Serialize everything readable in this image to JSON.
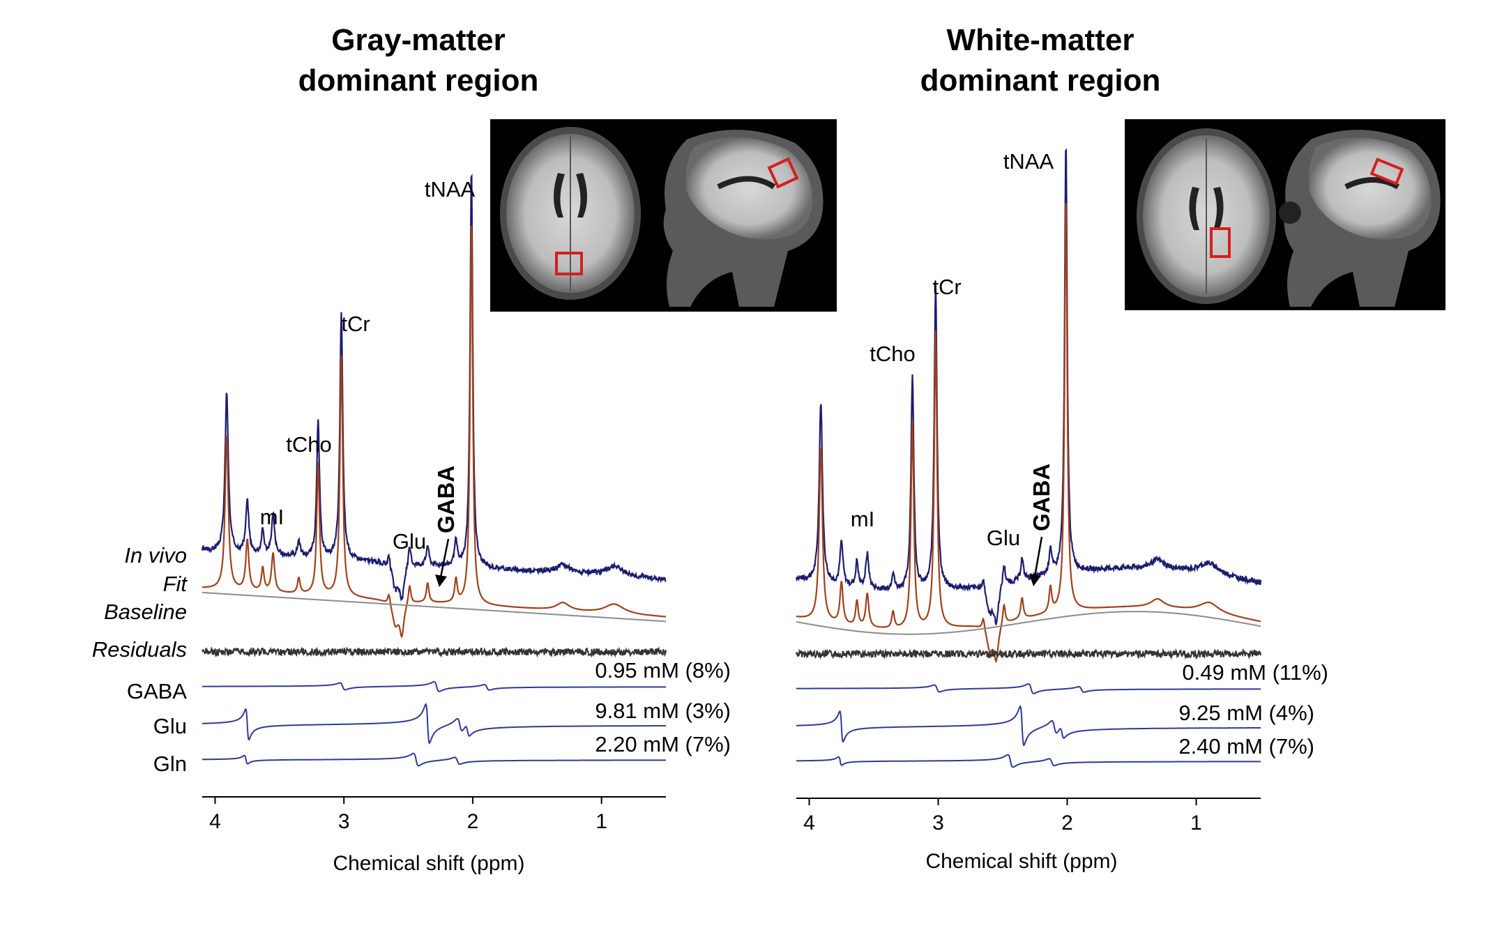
{
  "chart_data": [
    {
      "type": "line",
      "title_line1": "Gray-matter",
      "title_line2": "dominant region",
      "xlabel": "Chemical shift (ppm)",
      "xlim": [
        4.1,
        0.5
      ],
      "xticks": [
        "4",
        "3",
        "2",
        "1"
      ],
      "xtick_values": [
        4,
        3,
        2,
        1
      ],
      "trace_labels": {
        "invivo": "In vivo",
        "fit": "Fit",
        "baseline": "Baseline",
        "residuals": "Residuals"
      },
      "peak_labels": {
        "tNAA": "tNAA",
        "tCr": "tCr",
        "tCho": "tCho",
        "mI": "mI",
        "Glu": "Glu",
        "GABA": "GABA"
      },
      "peak_amplitudes": {
        "tNAA": 1.0,
        "tCr": 0.62,
        "tCho": 0.34,
        "mI_3.91": 0.4,
        "Glx_3.75": 0.13,
        "mI_3.55": 0.1
      },
      "metabolites": [
        {
          "name": "GABA",
          "concentration": "0.95 mM (8%)"
        },
        {
          "name": "Glu",
          "concentration": "9.81 mM (3%)"
        },
        {
          "name": "Gln",
          "concentration": "2.20 mM (7%)"
        }
      ]
    },
    {
      "type": "line",
      "title_line1": "White-matter",
      "title_line2": "dominant region",
      "xlabel": "Chemical shift (ppm)",
      "xlim": [
        4.1,
        0.5
      ],
      "xticks": [
        "4",
        "3",
        "2",
        "1"
      ],
      "xtick_values": [
        4,
        3,
        2,
        1
      ],
      "peak_labels": {
        "tNAA": "tNAA",
        "tCr": "tCr",
        "tCho": "tCho",
        "mI": "mI",
        "Glu": "Glu",
        "GABA": "GABA"
      },
      "peak_amplitudes": {
        "tNAA": 1.0,
        "tCr": 0.71,
        "tCho": 0.5,
        "mI_3.91": 0.42,
        "Glx_3.75": 0.1,
        "mI_3.55": 0.08
      },
      "metabolites": [
        {
          "name": "GABA",
          "concentration": "0.49 mM (11%)"
        },
        {
          "name": "Glu",
          "concentration": "9.25 mM (4%)"
        },
        {
          "name": "Gln",
          "concentration": "2.40 mM (7%)"
        }
      ]
    }
  ],
  "colors": {
    "invivo": "#1c1c6e",
    "fit": "#a0401a",
    "baseline": "#8c8c8c",
    "residuals": "#333333",
    "metab": "#2e3a96",
    "roi": "#d41f1f"
  },
  "insets": [
    "axial-sagittal-mri-gray-matter",
    "axial-sagittal-mri-white-matter"
  ]
}
